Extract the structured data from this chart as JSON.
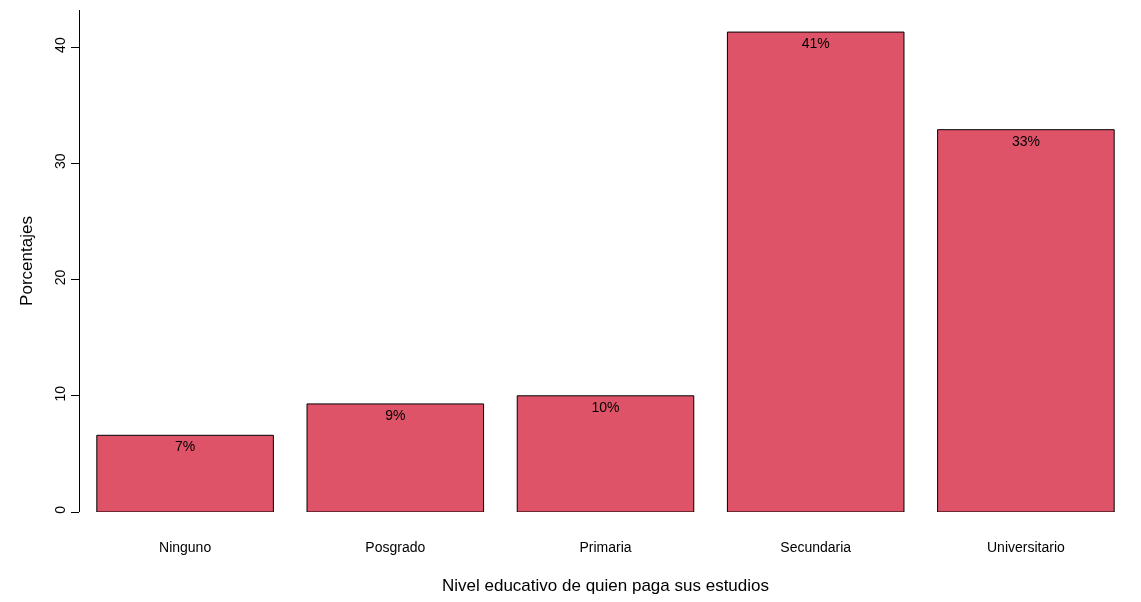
{
  "chart_data": {
    "type": "bar",
    "xlabel": "Nivel educativo de quien paga sus estudios",
    "ylabel": "Porcentajes",
    "categories": [
      "Ninguno",
      "Posgrado",
      "Primaria",
      "Secundaria",
      "Universitario"
    ],
    "values": [
      6.6,
      9.3,
      10.0,
      41.3,
      32.9
    ],
    "value_labels": [
      "7%",
      "9%",
      "10%",
      "41%",
      "33%"
    ],
    "color": "#df5369",
    "ylim": [
      0,
      43.2
    ],
    "yticks": [
      0,
      10,
      20,
      30,
      40
    ],
    "grid": false
  }
}
